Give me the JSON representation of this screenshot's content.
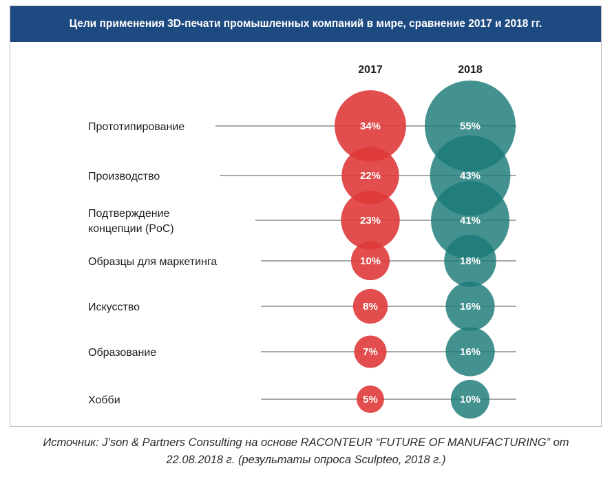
{
  "title": "Цели применения 3D-печати промышленных компаний в мире, сравнение 2017 и 2018 гг.",
  "source_line1": "Источник: J’son & Partners Consulting на основе RACONTEUR “FUTURE OF MANUFACTURING” от",
  "source_line2": "22.08.2018 г. (результаты опроса Sculpteo, 2018 г.)",
  "colors": {
    "header_bg": "#1d4a80",
    "series_2017": "#df3a3a",
    "series_2018": "#1a7a78"
  },
  "chart_data": {
    "type": "bubble",
    "categories": [
      [
        "Прототипирование"
      ],
      [
        "Производство"
      ],
      [
        "Подтверждение",
        "концепции (PoC)"
      ],
      [
        "Образцы для маркетинга"
      ],
      [
        "Искусство"
      ],
      [
        "Образование"
      ],
      [
        "Хобби"
      ]
    ],
    "series": [
      {
        "name": "2017",
        "values": [
          34,
          22,
          23,
          10,
          8,
          7,
          5
        ],
        "labels": [
          "34%",
          "22%",
          "23%",
          "10%",
          "8%",
          "7%",
          "5%"
        ]
      },
      {
        "name": "2018",
        "values": [
          55,
          43,
          41,
          18,
          16,
          16,
          10
        ],
        "labels": [
          "55%",
          "43%",
          "41%",
          "18%",
          "16%",
          "16%",
          "10%"
        ]
      }
    ],
    "unit": "%"
  }
}
